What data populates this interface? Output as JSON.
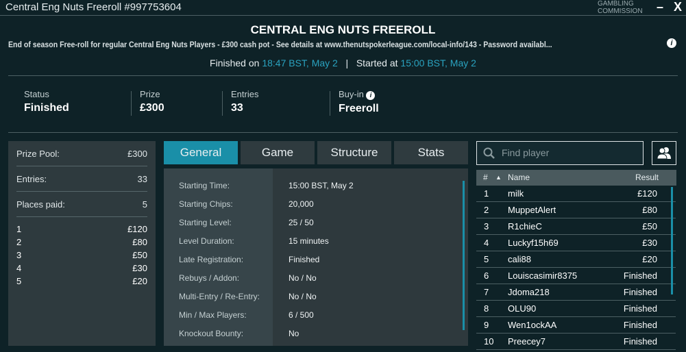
{
  "window": {
    "title": "Central Eng Nuts Freeroll #997753604",
    "brand": "GAMBLING COMMISSION",
    "minimize": "–",
    "close": "X"
  },
  "header": {
    "title": "CENTRAL ENG NUTS FREEROLL",
    "description": "End of season Free-roll for regular Central Eng Nuts Players - £300 cash pot - See details at www.thenutspokerleague.com/local-info/143 - Password availabl...",
    "finished_label": "Finished on",
    "finished_time": "18:47 BST, May 2",
    "sep": "|",
    "started_label": "Started at",
    "started_time": "15:00 BST, May 2"
  },
  "stats": [
    {
      "label": "Status",
      "value": "Finished"
    },
    {
      "label": "Prize",
      "value": "£300"
    },
    {
      "label": "Entries",
      "value": "33"
    },
    {
      "label": "Buy-in",
      "value": "Freeroll"
    }
  ],
  "prize_panel": {
    "rows": [
      {
        "label": "Prize Pool:",
        "value": "£300"
      },
      {
        "label": "Entries:",
        "value": "33"
      },
      {
        "label": "Places paid:",
        "value": "5"
      }
    ],
    "payouts": [
      {
        "place": "1",
        "amount": "£120"
      },
      {
        "place": "2",
        "amount": "£80"
      },
      {
        "place": "3",
        "amount": "£50"
      },
      {
        "place": "4",
        "amount": "£30"
      },
      {
        "place": "5",
        "amount": "£20"
      }
    ]
  },
  "tabs": [
    {
      "label": "General",
      "active": true
    },
    {
      "label": "Game"
    },
    {
      "label": "Structure"
    },
    {
      "label": "Stats"
    }
  ],
  "general": [
    {
      "k": "Starting Time:",
      "v": "15:00 BST, May 2"
    },
    {
      "k": "Starting Chips:",
      "v": "20,000"
    },
    {
      "k": "Starting Level:",
      "v": "25 / 50"
    },
    {
      "k": "Level Duration:",
      "v": "15 minutes"
    },
    {
      "k": "Late Registration:",
      "v": "Finished"
    },
    {
      "k": "Rebuys / Addon:",
      "v": "No / No"
    },
    {
      "k": "Multi-Entry / Re-Entry:",
      "v": "No / No"
    },
    {
      "k": "Min / Max Players:",
      "v": "6 / 500"
    },
    {
      "k": "Knockout Bounty:",
      "v": "No"
    }
  ],
  "players": {
    "search_placeholder": "Find player",
    "headers": {
      "rank": "#",
      "sort": "▲",
      "name": "Name",
      "result": "Result"
    },
    "rows": [
      {
        "r": "1",
        "n": "milk",
        "res": "£120"
      },
      {
        "r": "2",
        "n": "MuppetAlert",
        "res": "£80"
      },
      {
        "r": "3",
        "n": "R1chieC",
        "res": "£50"
      },
      {
        "r": "4",
        "n": "Luckyf15h69",
        "res": "£30"
      },
      {
        "r": "5",
        "n": "cali88",
        "res": "£20"
      },
      {
        "r": "6",
        "n": "Louiscasimir8375",
        "res": "Finished"
      },
      {
        "r": "7",
        "n": "Jdoma218",
        "res": "Finished"
      },
      {
        "r": "8",
        "n": "OLU90",
        "res": "Finished"
      },
      {
        "r": "9",
        "n": "Wen1ockAA",
        "res": "Finished"
      },
      {
        "r": "10",
        "n": "Preecey7",
        "res": "Finished"
      }
    ]
  },
  "colors": {
    "accent": "#1a8fa8",
    "background": "#0e2227",
    "panel": "#2e3a3e"
  }
}
